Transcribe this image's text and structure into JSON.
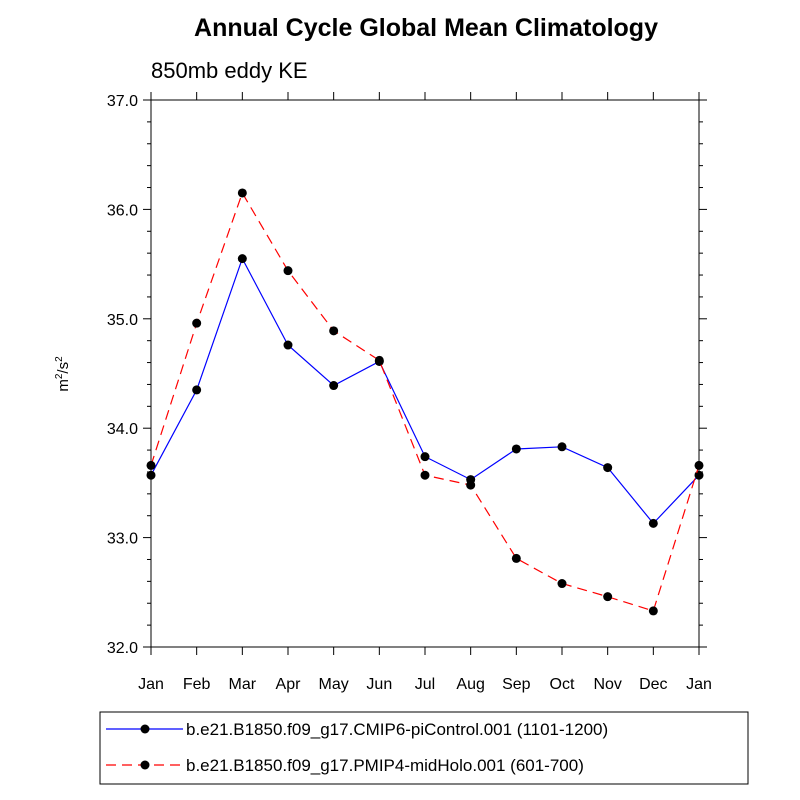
{
  "chart_data": {
    "type": "line",
    "title": "Annual Cycle Global Mean Climatology",
    "subtitle": "850mb eddy KE",
    "ylabel": {
      "base": "m",
      "sup1": "2",
      "mid": "/s",
      "sup2": "2"
    },
    "xlabel": "",
    "categories": [
      "Jan",
      "Feb",
      "Mar",
      "Apr",
      "May",
      "Jun",
      "Jul",
      "Aug",
      "Sep",
      "Oct",
      "Nov",
      "Dec",
      "Jan"
    ],
    "ylim": [
      32.0,
      37.0
    ],
    "yticks": [
      "32.0",
      "33.0",
      "34.0",
      "35.0",
      "36.0",
      "37.0"
    ],
    "series": [
      {
        "name": "b.e21.B1850.f09_g17.CMIP6-piControl.001 (1101-1200)",
        "color": "#0000ff",
        "dash": "solid",
        "values": [
          33.57,
          34.35,
          35.55,
          34.76,
          34.39,
          34.61,
          33.74,
          33.53,
          33.81,
          33.83,
          33.64,
          33.13,
          33.57
        ]
      },
      {
        "name": "b.e21.B1850.f09_g17.PMIP4-midHolo.001 (601-700)",
        "color": "#ff0000",
        "dash": "dashed",
        "values": [
          33.66,
          34.96,
          36.15,
          35.44,
          34.89,
          34.62,
          33.57,
          33.48,
          32.81,
          32.58,
          32.46,
          32.33,
          33.66
        ]
      }
    ],
    "grid": false,
    "legend_position": "bottom"
  }
}
